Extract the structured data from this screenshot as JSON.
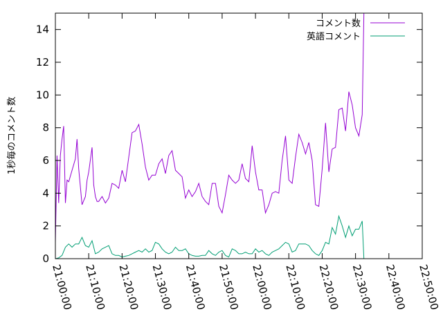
{
  "chart_data": {
    "type": "line",
    "title": "",
    "xlabel": "",
    "ylabel": "1秒毎のコメント数",
    "xlim": [
      "21:00:00",
      "22:50:00"
    ],
    "ylim": [
      0,
      15
    ],
    "x_ticks": [
      "21:00:00",
      "21:10:00",
      "21:20:00",
      "21:30:00",
      "21:40:00",
      "21:50:00",
      "22:00:00",
      "22:10:00",
      "22:20:00",
      "22:30:00",
      "22:40:00",
      "22:50:00"
    ],
    "y_ticks": [
      0,
      2,
      4,
      6,
      8,
      10,
      12,
      14
    ],
    "grid": false,
    "legend_position": "top-right",
    "series": [
      {
        "name": "コメント数",
        "color": "#9400d3",
        "points": [
          [
            "21:00:00",
            1.0
          ],
          [
            "21:00:30",
            6.3
          ],
          [
            "21:01:00",
            3.4
          ],
          [
            "21:01:30",
            6.3
          ],
          [
            "21:02:00",
            7.3
          ],
          [
            "21:02:30",
            8.1
          ],
          [
            "21:03:00",
            3.4
          ],
          [
            "21:03:30",
            4.8
          ],
          [
            "21:04:00",
            4.7
          ],
          [
            "21:05:00",
            5.4
          ],
          [
            "21:06:00",
            6.1
          ],
          [
            "21:06:30",
            7.3
          ],
          [
            "21:07:00",
            5.5
          ],
          [
            "21:08:00",
            3.3
          ],
          [
            "21:09:00",
            3.8
          ],
          [
            "21:09:30",
            4.8
          ],
          [
            "21:10:00",
            5.3
          ],
          [
            "21:11:00",
            6.8
          ],
          [
            "21:11:30",
            4.5
          ],
          [
            "21:12:00",
            3.8
          ],
          [
            "21:12:30",
            3.5
          ],
          [
            "21:13:00",
            3.5
          ],
          [
            "21:14:00",
            3.8
          ],
          [
            "21:15:00",
            3.4
          ],
          [
            "21:16:00",
            3.7
          ],
          [
            "21:17:00",
            4.6
          ],
          [
            "21:18:00",
            4.5
          ],
          [
            "21:19:00",
            4.3
          ],
          [
            "21:20:00",
            5.4
          ],
          [
            "21:21:00",
            4.7
          ],
          [
            "21:22:00",
            6.2
          ],
          [
            "21:23:00",
            7.7
          ],
          [
            "21:24:00",
            7.8
          ],
          [
            "21:25:00",
            8.2
          ],
          [
            "21:26:00",
            7.0
          ],
          [
            "21:27:00",
            5.6
          ],
          [
            "21:28:00",
            4.8
          ],
          [
            "21:29:00",
            5.1
          ],
          [
            "21:30:00",
            5.1
          ],
          [
            "21:31:00",
            5.8
          ],
          [
            "21:32:00",
            6.1
          ],
          [
            "21:33:00",
            5.2
          ],
          [
            "21:34:00",
            6.3
          ],
          [
            "21:35:00",
            6.6
          ],
          [
            "21:36:00",
            5.4
          ],
          [
            "21:37:00",
            5.2
          ],
          [
            "21:38:00",
            5.0
          ],
          [
            "21:39:00",
            3.7
          ],
          [
            "21:40:00",
            4.2
          ],
          [
            "21:41:00",
            3.8
          ],
          [
            "21:42:00",
            4.1
          ],
          [
            "21:43:00",
            4.6
          ],
          [
            "21:44:00",
            3.8
          ],
          [
            "21:45:00",
            3.5
          ],
          [
            "21:46:00",
            3.3
          ],
          [
            "21:47:00",
            4.6
          ],
          [
            "21:48:00",
            4.6
          ],
          [
            "21:49:00",
            3.2
          ],
          [
            "21:50:00",
            2.8
          ],
          [
            "21:51:00",
            3.9
          ],
          [
            "21:52:00",
            5.1
          ],
          [
            "21:53:00",
            4.8
          ],
          [
            "21:54:00",
            4.6
          ],
          [
            "21:55:00",
            4.8
          ],
          [
            "21:56:00",
            5.8
          ],
          [
            "21:57:00",
            4.9
          ],
          [
            "21:58:00",
            4.7
          ],
          [
            "21:59:00",
            6.9
          ],
          [
            "22:00:00",
            5.3
          ],
          [
            "22:01:00",
            4.2
          ],
          [
            "22:02:00",
            4.2
          ],
          [
            "22:03:00",
            2.8
          ],
          [
            "22:04:00",
            3.3
          ],
          [
            "22:05:00",
            4.0
          ],
          [
            "22:06:00",
            4.1
          ],
          [
            "22:07:00",
            4.0
          ],
          [
            "22:08:00",
            6.0
          ],
          [
            "22:09:00",
            7.5
          ],
          [
            "22:10:00",
            4.8
          ],
          [
            "22:11:00",
            4.6
          ],
          [
            "22:12:00",
            6.2
          ],
          [
            "22:13:00",
            7.6
          ],
          [
            "22:14:00",
            7.1
          ],
          [
            "22:15:00",
            6.4
          ],
          [
            "22:16:00",
            7.1
          ],
          [
            "22:17:00",
            6.0
          ],
          [
            "22:18:00",
            3.3
          ],
          [
            "22:19:00",
            3.2
          ],
          [
            "22:20:00",
            5.5
          ],
          [
            "22:21:00",
            8.3
          ],
          [
            "22:22:00",
            5.3
          ],
          [
            "22:23:00",
            6.7
          ],
          [
            "22:24:00",
            6.8
          ],
          [
            "22:25:00",
            9.1
          ],
          [
            "22:26:00",
            9.2
          ],
          [
            "22:27:00",
            7.8
          ],
          [
            "22:28:00",
            10.2
          ],
          [
            "22:29:00",
            9.4
          ],
          [
            "22:30:00",
            8.0
          ],
          [
            "22:31:00",
            7.5
          ],
          [
            "22:32:00",
            8.8
          ],
          [
            "22:32:30",
            15.0
          ]
        ]
      },
      {
        "name": "英語コメント",
        "color": "#009e73",
        "points": [
          [
            "21:00:00",
            0.0
          ],
          [
            "21:01:00",
            0.05
          ],
          [
            "21:02:00",
            0.2
          ],
          [
            "21:03:00",
            0.7
          ],
          [
            "21:04:00",
            0.9
          ],
          [
            "21:05:00",
            0.7
          ],
          [
            "21:06:00",
            0.9
          ],
          [
            "21:07:00",
            0.9
          ],
          [
            "21:08:00",
            1.3
          ],
          [
            "21:09:00",
            0.8
          ],
          [
            "21:10:00",
            0.7
          ],
          [
            "21:11:00",
            1.1
          ],
          [
            "21:12:00",
            0.3
          ],
          [
            "21:13:00",
            0.4
          ],
          [
            "21:14:00",
            0.6
          ],
          [
            "21:15:00",
            0.7
          ],
          [
            "21:16:00",
            0.8
          ],
          [
            "21:17:00",
            0.3
          ],
          [
            "21:18:00",
            0.2
          ],
          [
            "21:19:00",
            0.2
          ],
          [
            "21:20:00",
            0.1
          ],
          [
            "21:21:00",
            0.15
          ],
          [
            "21:22:00",
            0.2
          ],
          [
            "21:23:00",
            0.3
          ],
          [
            "21:24:00",
            0.4
          ],
          [
            "21:25:00",
            0.5
          ],
          [
            "21:26:00",
            0.4
          ],
          [
            "21:27:00",
            0.6
          ],
          [
            "21:28:00",
            0.4
          ],
          [
            "21:29:00",
            0.5
          ],
          [
            "21:30:00",
            1.0
          ],
          [
            "21:31:00",
            0.9
          ],
          [
            "21:32:00",
            0.6
          ],
          [
            "21:33:00",
            0.4
          ],
          [
            "21:34:00",
            0.3
          ],
          [
            "21:35:00",
            0.4
          ],
          [
            "21:36:00",
            0.7
          ],
          [
            "21:37:00",
            0.5
          ],
          [
            "21:38:00",
            0.5
          ],
          [
            "21:39:00",
            0.6
          ],
          [
            "21:40:00",
            0.3
          ],
          [
            "21:41:00",
            0.2
          ],
          [
            "21:42:00",
            0.15
          ],
          [
            "21:43:00",
            0.15
          ],
          [
            "21:44:00",
            0.2
          ],
          [
            "21:45:00",
            0.2
          ],
          [
            "21:46:00",
            0.5
          ],
          [
            "21:47:00",
            0.3
          ],
          [
            "21:48:00",
            0.2
          ],
          [
            "21:49:00",
            0.4
          ],
          [
            "21:50:00",
            0.5
          ],
          [
            "21:51:00",
            0.2
          ],
          [
            "21:52:00",
            0.1
          ],
          [
            "21:53:00",
            0.6
          ],
          [
            "21:54:00",
            0.5
          ],
          [
            "21:55:00",
            0.3
          ],
          [
            "21:56:00",
            0.3
          ],
          [
            "21:57:00",
            0.4
          ],
          [
            "21:58:00",
            0.3
          ],
          [
            "21:59:00",
            0.3
          ],
          [
            "22:00:00",
            0.6
          ],
          [
            "22:01:00",
            0.4
          ],
          [
            "22:02:00",
            0.5
          ],
          [
            "22:03:00",
            0.3
          ],
          [
            "22:04:00",
            0.2
          ],
          [
            "22:05:00",
            0.4
          ],
          [
            "22:06:00",
            0.5
          ],
          [
            "22:07:00",
            0.6
          ],
          [
            "22:08:00",
            0.8
          ],
          [
            "22:09:00",
            1.0
          ],
          [
            "22:10:00",
            0.9
          ],
          [
            "22:11:00",
            0.4
          ],
          [
            "22:12:00",
            0.5
          ],
          [
            "22:13:00",
            0.9
          ],
          [
            "22:14:00",
            0.9
          ],
          [
            "22:15:00",
            0.9
          ],
          [
            "22:16:00",
            0.8
          ],
          [
            "22:17:00",
            0.5
          ],
          [
            "22:18:00",
            0.3
          ],
          [
            "22:19:00",
            0.2
          ],
          [
            "22:20:00",
            0.5
          ],
          [
            "22:21:00",
            1.0
          ],
          [
            "22:22:00",
            0.9
          ],
          [
            "22:23:00",
            1.9
          ],
          [
            "22:24:00",
            1.5
          ],
          [
            "22:25:00",
            2.6
          ],
          [
            "22:26:00",
            2.0
          ],
          [
            "22:27:00",
            1.3
          ],
          [
            "22:28:00",
            2.0
          ],
          [
            "22:29:00",
            1.4
          ],
          [
            "22:30:00",
            1.8
          ],
          [
            "22:31:00",
            1.8
          ],
          [
            "22:32:00",
            2.3
          ],
          [
            "22:32:30",
            0.0
          ]
        ]
      }
    ]
  }
}
